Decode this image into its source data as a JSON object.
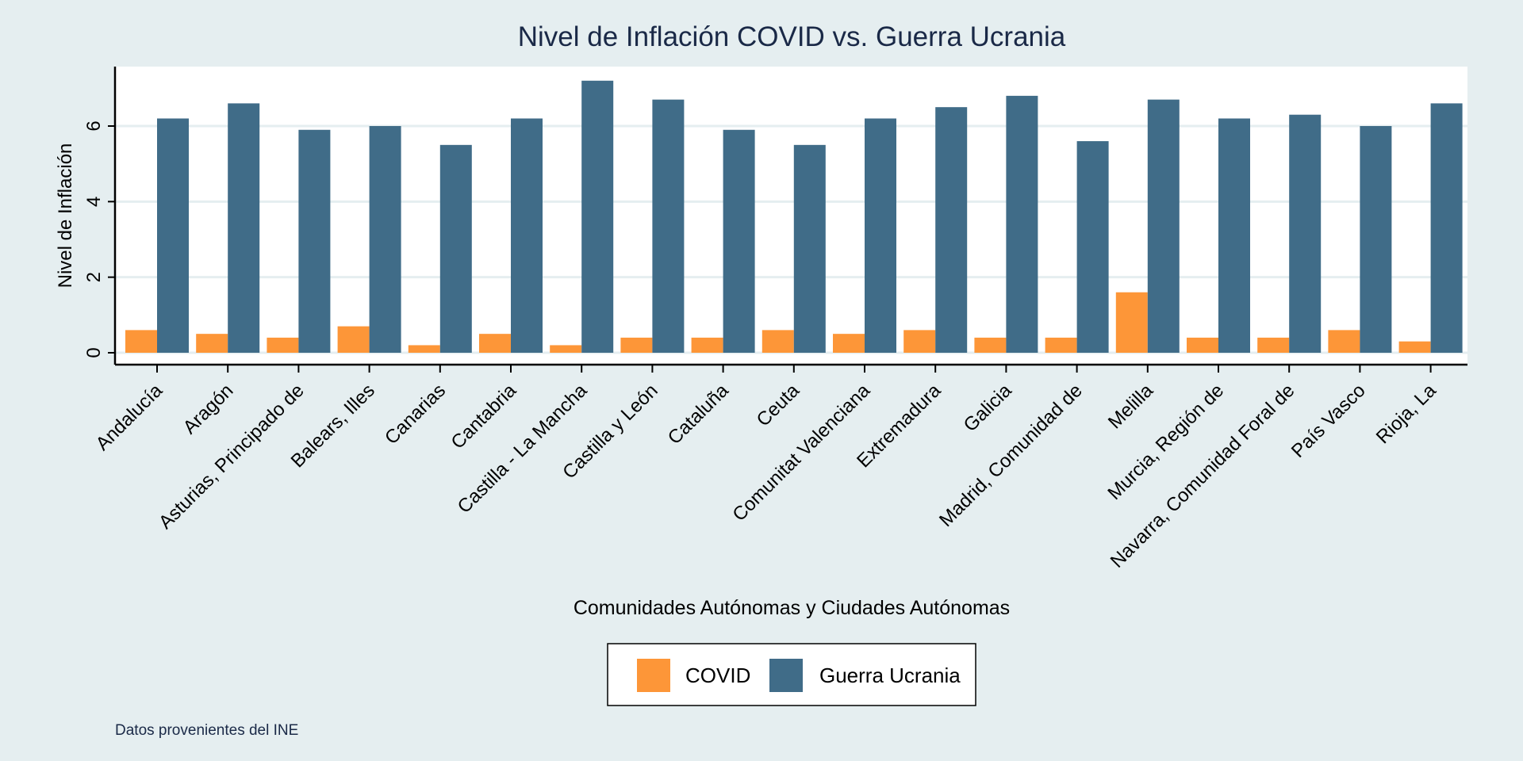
{
  "chart_data": {
    "type": "bar",
    "title": "Nivel de Inflación COVID vs. Guerra Ucrania",
    "xlabel": "Comunidades Autónomas y Ciudades Autónomas",
    "ylabel": "Nivel de Inflación",
    "ylim": [
      0,
      7.5
    ],
    "yticks": [
      "0",
      "2",
      "4",
      "6"
    ],
    "grid": true,
    "legend_position": "bottom",
    "note": "Datos provenientes del INE",
    "categories": [
      "Andalucía",
      "Aragón",
      "Asturias, Principado de",
      "Balears, Illes",
      "Canarias",
      "Cantabria",
      "Castilla - La Mancha",
      "Castilla y León",
      "Cataluña",
      "Ceuta",
      "Comunitat Valenciana",
      "Extremadura",
      "Galicia",
      "Madrid, Comunidad de",
      "Melilla",
      "Murcia, Región de",
      "Navarra, Comunidad Foral de",
      "País Vasco",
      "Rioja, La"
    ],
    "series": [
      {
        "name": "COVID",
        "color": "#fd9638",
        "values": [
          0.6,
          0.5,
          0.4,
          0.7,
          0.2,
          0.5,
          0.2,
          0.4,
          0.4,
          0.6,
          0.5,
          0.6,
          0.4,
          0.4,
          1.6,
          0.4,
          0.4,
          0.6,
          0.3
        ]
      },
      {
        "name": "Guerra Ucrania",
        "color": "#406c88",
        "values": [
          6.2,
          6.6,
          5.9,
          6.0,
          5.5,
          6.2,
          7.2,
          6.7,
          5.9,
          5.5,
          6.2,
          6.5,
          6.8,
          5.6,
          6.7,
          6.2,
          6.3,
          6.0,
          6.6
        ]
      }
    ]
  },
  "colors": {
    "background": "#e5eef0",
    "plot_background": "#ffffff",
    "gridline": "#e5eef0",
    "title": "#1a2947"
  }
}
